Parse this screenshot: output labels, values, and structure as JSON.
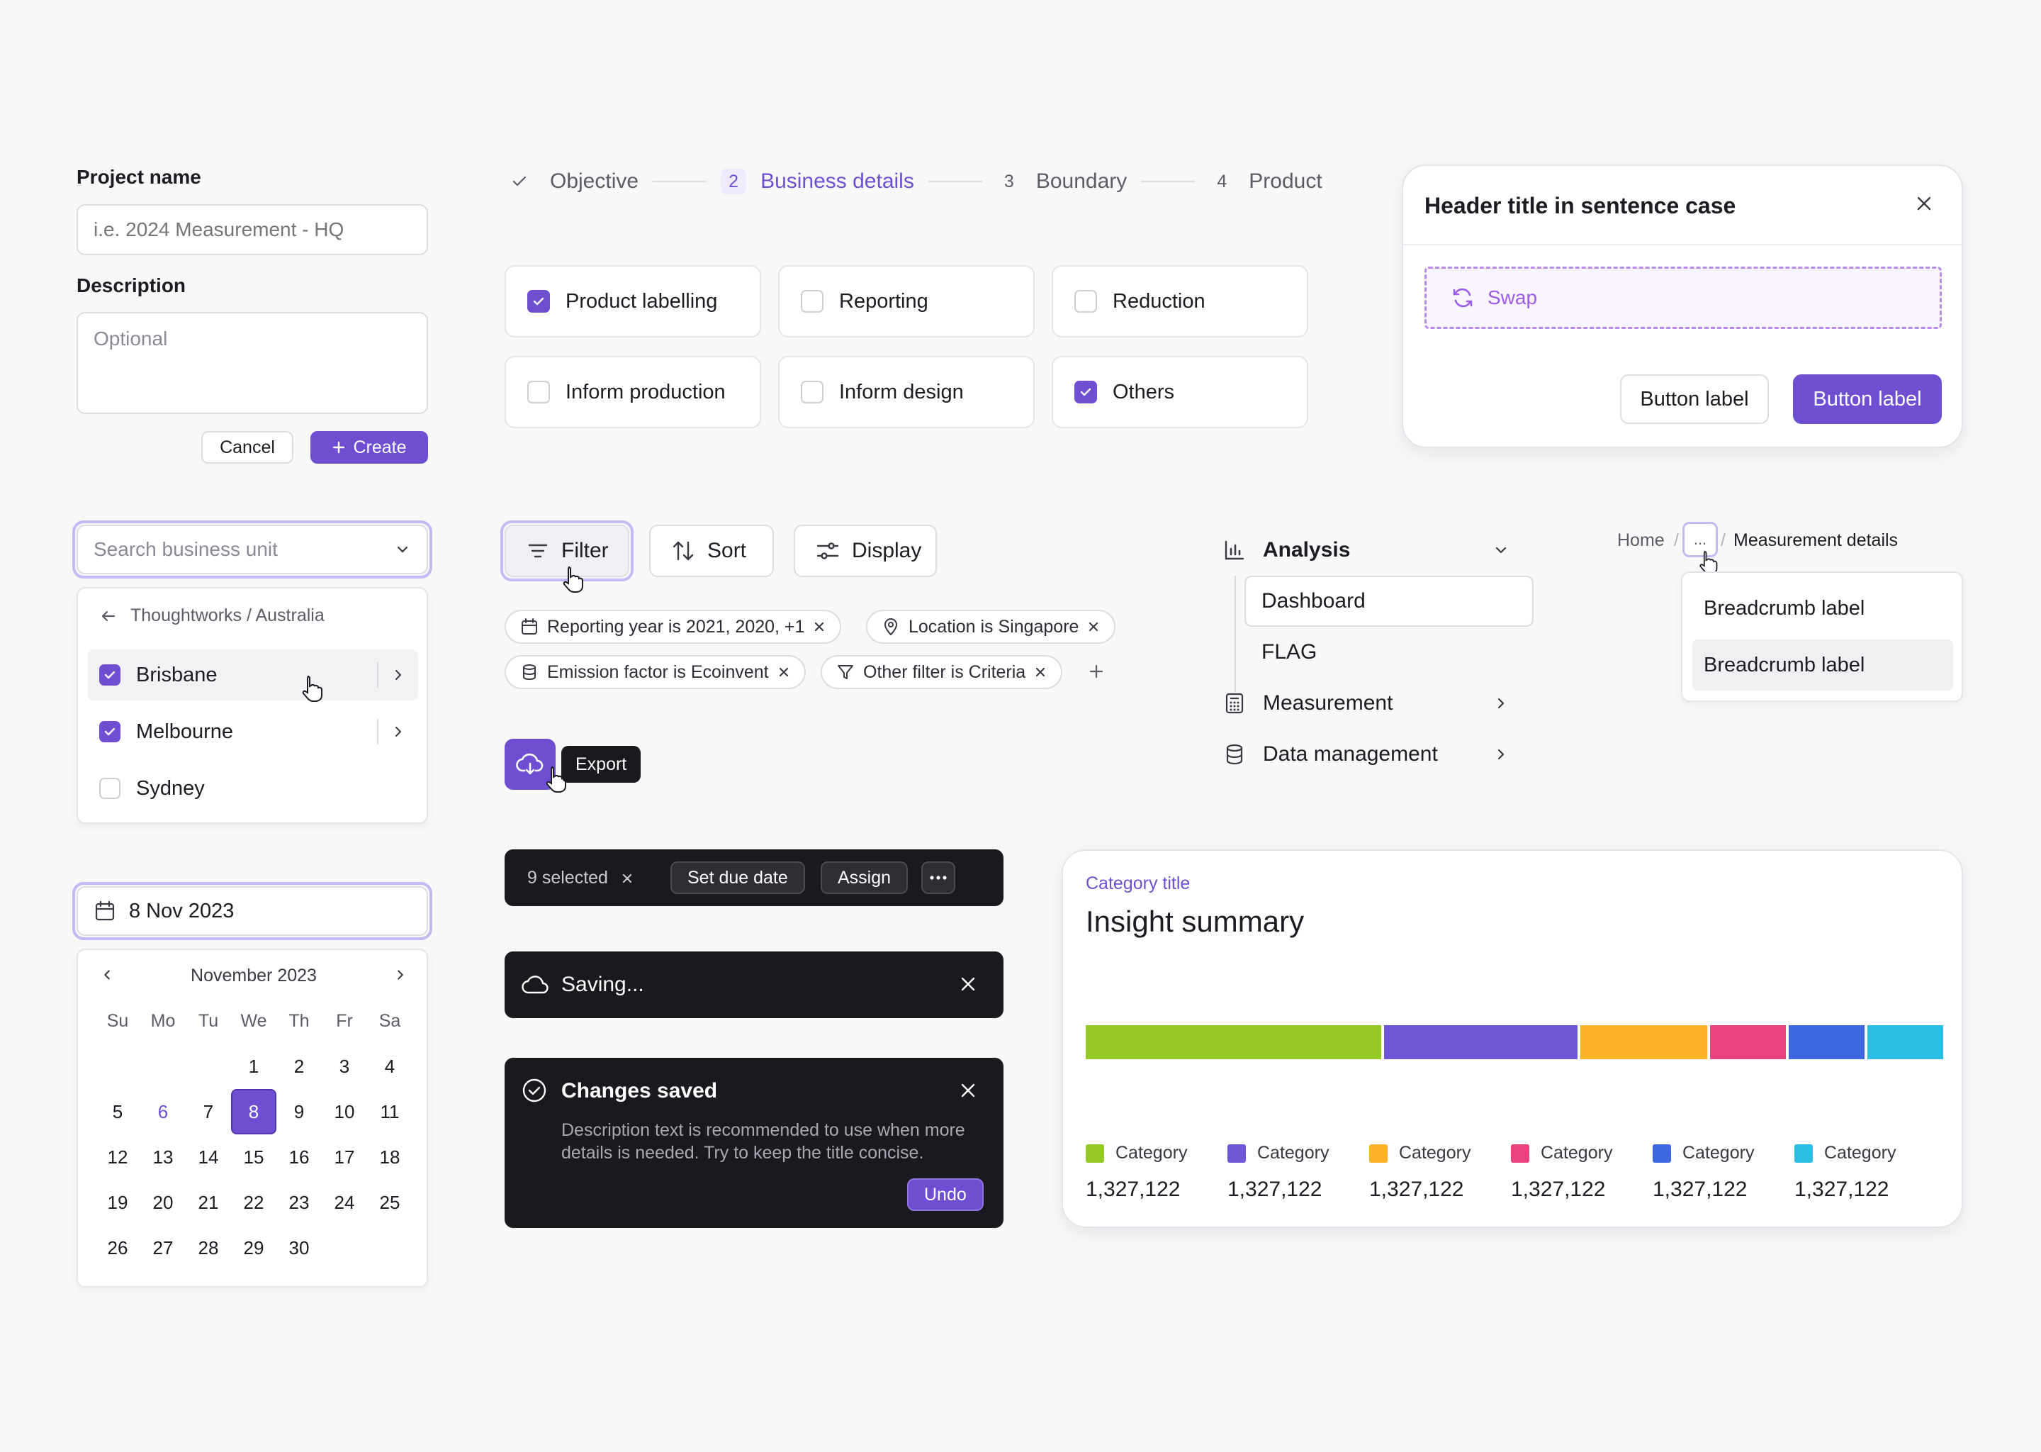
{
  "project_form": {
    "name_label": "Project name",
    "name_placeholder": "i.e. 2024 Measurement - HQ",
    "description_label": "Description",
    "description_placeholder": "Optional",
    "cancel_label": "Cancel",
    "create_label": "Create"
  },
  "stepper": {
    "steps": [
      {
        "num": "",
        "label": "Objective",
        "state": "done"
      },
      {
        "num": "2",
        "label": "Business details",
        "state": "active"
      },
      {
        "num": "3",
        "label": "Boundary",
        "state": "pending"
      },
      {
        "num": "4",
        "label": "Product",
        "state": "pending"
      }
    ]
  },
  "options": [
    {
      "label": "Product labelling",
      "checked": true
    },
    {
      "label": "Reporting",
      "checked": false
    },
    {
      "label": "Reduction",
      "checked": false
    },
    {
      "label": "Inform production",
      "checked": false
    },
    {
      "label": "Inform design",
      "checked": false
    },
    {
      "label": "Others",
      "checked": true
    }
  ],
  "modal": {
    "title": "Header title in sentence case",
    "swap_label": "Swap",
    "secondary_label": "Button label",
    "primary_label": "Button label"
  },
  "business_search": {
    "placeholder": "Search business unit",
    "breadcrumb": "Thoughtworks / Australia",
    "items": [
      {
        "label": "Brisbane",
        "checked": true
      },
      {
        "label": "Melbourne",
        "checked": true
      },
      {
        "label": "Sydney",
        "checked": false
      }
    ]
  },
  "toolbar": {
    "filter_label": "Filter",
    "sort_label": "Sort",
    "display_label": "Display",
    "chips": [
      "Reporting year is 2021, 2020, +1",
      "Location is Singapore",
      "Emission factor is Ecoinvent",
      "Other filter is Criteria"
    ],
    "export_tooltip": "Export"
  },
  "nav": {
    "analysis": "Analysis",
    "dashboard": "Dashboard",
    "flag": "FLAG",
    "measurement": "Measurement",
    "data_management": "Data management"
  },
  "breadcrumbs": {
    "home": "Home",
    "ellipsis": "...",
    "current": "Measurement details",
    "menu_items": [
      "Breadcrumb label",
      "Breadcrumb label"
    ]
  },
  "date_picker": {
    "value": "8 Nov 2023",
    "month": "November 2023",
    "weekdays": [
      "Su",
      "Mo",
      "Tu",
      "We",
      "Th",
      "Fr",
      "Sa"
    ],
    "selected_day": "8",
    "today": "6"
  },
  "bulk_bar": {
    "selected": "9 selected",
    "due_label": "Set due date",
    "assign_label": "Assign"
  },
  "saving_toast": {
    "label": "Saving..."
  },
  "saved_toast": {
    "title": "Changes saved",
    "description": "Description text is recommended to use when more details is needed. Try to keep the title concise.",
    "undo_label": "Undo"
  },
  "insight": {
    "category_title": "Category title",
    "title": "Insight summary",
    "colors": [
      "#94c926",
      "#6e56d6",
      "#fbb228",
      "#e8437f",
      "#3f67df",
      "#2ebde2"
    ],
    "segments": [
      35,
      23,
      15,
      9,
      9,
      9
    ],
    "legend": [
      {
        "label": "Category",
        "value": "1,327,122"
      },
      {
        "label": "Category",
        "value": "1,327,122"
      },
      {
        "label": "Category",
        "value": "1,327,122"
      },
      {
        "label": "Category",
        "value": "1,327,122"
      },
      {
        "label": "Category",
        "value": "1,327,122"
      },
      {
        "label": "Category",
        "value": "1,327,122"
      }
    ]
  }
}
